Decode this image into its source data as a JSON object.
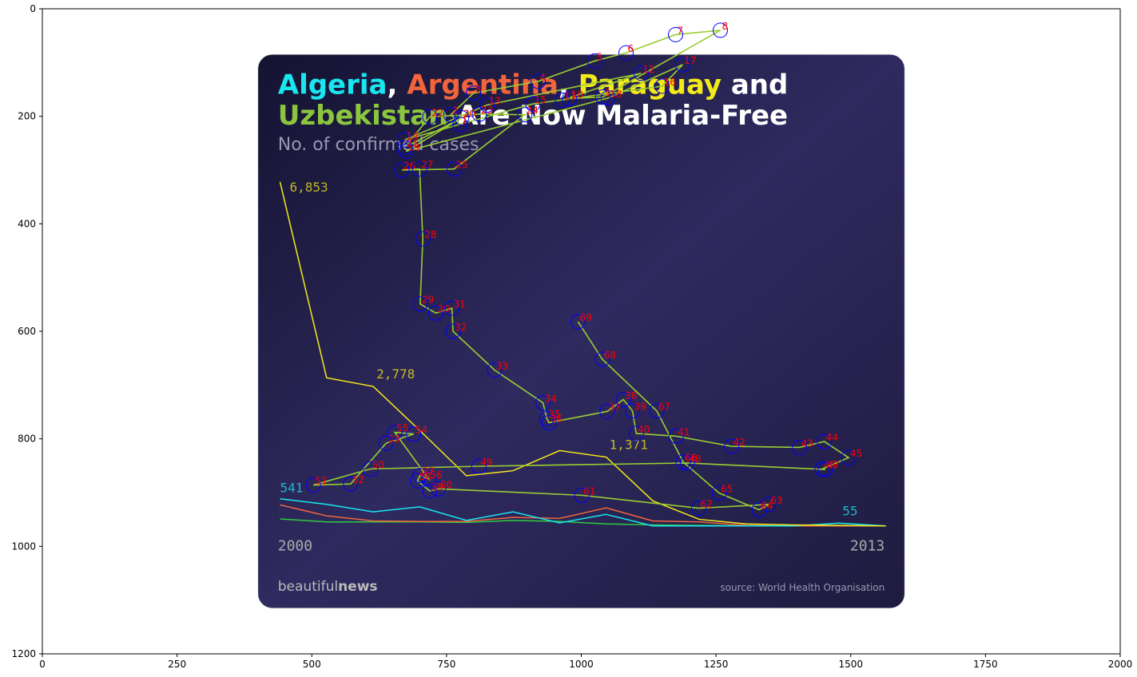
{
  "plot": {
    "x_ticks": [
      "0",
      "250",
      "500",
      "750",
      "1000",
      "1250",
      "1500",
      "1750",
      "2000"
    ],
    "y_ticks": [
      "0",
      "200",
      "400",
      "600",
      "800",
      "1000",
      "1200"
    ],
    "xlim": [
      0,
      2000
    ],
    "ylim": [
      1200,
      0
    ],
    "colors": {
      "polyline": "#9acd32",
      "marker": "#0000ff",
      "index_label": "#ff0000"
    }
  },
  "infographic": {
    "title_words": [
      {
        "text": "Algeria",
        "color": "#19e6ef"
      },
      {
        "text": ", ",
        "color": "#ffffff"
      },
      {
        "text": "Argentina",
        "color": "#f2643b"
      },
      {
        "text": ", ",
        "color": "#ffffff"
      },
      {
        "text": "Paraguay",
        "color": "#f3ea1a"
      },
      {
        "text": " and",
        "color": "#ffffff"
      }
    ],
    "title_line2_words": [
      {
        "text": "Uzbekistan",
        "color": "#8cc63e"
      },
      {
        "text": " Are Now Malaria-Free",
        "color": "#ffffff"
      }
    ],
    "subtitle": "No. of confirmed cases",
    "year_start": "2000",
    "year_end": "2013",
    "brand_light": "beautiful",
    "brand_bold": "news",
    "source": "source: World Health Organisation",
    "colors": {
      "bg_top": "#141331",
      "bg_mid": "#2f2a5f",
      "bg_bottom": "#1e1b3f"
    }
  },
  "chart_data": [
    {
      "type": "line",
      "title": "Algeria, Argentina, Paraguay and Uzbekistan Are Now Malaria-Free",
      "subtitle": "No. of confirmed cases",
      "x": [
        2000,
        2001,
        2002,
        2003,
        2004,
        2005,
        2006,
        2007,
        2008,
        2009,
        2010,
        2011,
        2012,
        2013
      ],
      "xlim": [
        2000,
        2013
      ],
      "series": [
        {
          "name": "Uzbekistan",
          "color": "#f3ea1a",
          "values": [
            6853,
            2950,
            2778,
            1900,
            1000,
            1100,
            1500,
            1371,
            500,
            130,
            40,
            20,
            10,
            0
          ],
          "labels": [
            {
              "text": "6,853",
              "index": 0
            },
            {
              "text": "2,778",
              "index": 2
            },
            {
              "text": "1,371",
              "index": 7
            }
          ]
        },
        {
          "name": "Paraguay",
          "color": "#19e6ef",
          "values": [
            541,
            430,
            280,
            380,
            110,
            280,
            60,
            230,
            0,
            0,
            0,
            0,
            55,
            0
          ],
          "labels": [
            {
              "text": "541",
              "index": 0
            },
            {
              "text": "55",
              "index": 12
            }
          ]
        },
        {
          "name": "Argentina",
          "color": "#f2643b",
          "values": [
            420,
            200,
            100,
            90,
            90,
            170,
            150,
            360,
            100,
            80,
            10,
            0,
            0,
            0
          ]
        },
        {
          "name": "Algeria",
          "color": "#2ecc40",
          "values": [
            140,
            80,
            80,
            80,
            70,
            110,
            90,
            40,
            20,
            10,
            0,
            0,
            0,
            0
          ]
        }
      ]
    },
    {
      "type": "scatter",
      "xlim": [
        0,
        2000
      ],
      "ylim": [
        1200,
        0
      ],
      "points": [
        {
          "label": "1",
          "x": 775,
          "y": 215
        },
        {
          "label": "2",
          "x": 758,
          "y": 197
        },
        {
          "label": "3",
          "x": 800,
          "y": 157
        },
        {
          "label": "4",
          "x": 920,
          "y": 135
        },
        {
          "label": "5",
          "x": 1025,
          "y": 97
        },
        {
          "label": "6",
          "x": 1083,
          "y": 82
        },
        {
          "label": "7",
          "x": 1175,
          "y": 48
        },
        {
          "label": "8",
          "x": 1258,
          "y": 40
        },
        {
          "label": "9",
          "x": 1040,
          "y": 164
        },
        {
          "label": "10",
          "x": 978,
          "y": 167
        },
        {
          "label": "11",
          "x": 965,
          "y": 170
        },
        {
          "label": "12",
          "x": 1111,
          "y": 120
        },
        {
          "label": "13",
          "x": 825,
          "y": 179
        },
        {
          "label": "14",
          "x": 672,
          "y": 244
        },
        {
          "label": "15",
          "x": 910,
          "y": 177
        },
        {
          "label": "16",
          "x": 1150,
          "y": 144
        },
        {
          "label": "17",
          "x": 1188,
          "y": 104
        },
        {
          "label": "18",
          "x": 1050,
          "y": 166
        },
        {
          "label": "19",
          "x": 675,
          "y": 265
        },
        {
          "label": "20",
          "x": 778,
          "y": 203
        },
        {
          "label": "21",
          "x": 672,
          "y": 258
        },
        {
          "label": "22",
          "x": 719,
          "y": 201
        },
        {
          "label": "23",
          "x": 811,
          "y": 196
        },
        {
          "label": "24",
          "x": 895,
          "y": 197
        },
        {
          "label": "25",
          "x": 764,
          "y": 298
        },
        {
          "label": "26",
          "x": 667,
          "y": 300
        },
        {
          "label": "27",
          "x": 700,
          "y": 298
        },
        {
          "label": "28",
          "x": 706,
          "y": 428
        },
        {
          "label": "29",
          "x": 701,
          "y": 549
        },
        {
          "label": "30",
          "x": 730,
          "y": 566
        },
        {
          "label": "31",
          "x": 760,
          "y": 557
        },
        {
          "label": "32",
          "x": 762,
          "y": 600
        },
        {
          "label": "33",
          "x": 839,
          "y": 672
        },
        {
          "label": "34",
          "x": 929,
          "y": 733
        },
        {
          "label": "35",
          "x": 936,
          "y": 762
        },
        {
          "label": "36",
          "x": 940,
          "y": 770
        },
        {
          "label": "37",
          "x": 1048,
          "y": 749
        },
        {
          "label": "38",
          "x": 1078,
          "y": 727
        },
        {
          "label": "39",
          "x": 1095,
          "y": 748
        },
        {
          "label": "40",
          "x": 1102,
          "y": 790
        },
        {
          "label": "41",
          "x": 1176,
          "y": 795
        },
        {
          "label": "42",
          "x": 1279,
          "y": 814
        },
        {
          "label": "43",
          "x": 1405,
          "y": 816
        },
        {
          "label": "44",
          "x": 1451,
          "y": 805
        },
        {
          "label": "45",
          "x": 1496,
          "y": 835
        },
        {
          "label": "46",
          "x": 1447,
          "y": 856
        },
        {
          "label": "47",
          "x": 1453,
          "y": 857
        },
        {
          "label": "48",
          "x": 1197,
          "y": 845
        },
        {
          "label": "49",
          "x": 810,
          "y": 851
        },
        {
          "label": "50",
          "x": 609,
          "y": 856
        },
        {
          "label": "51",
          "x": 503,
          "y": 886
        },
        {
          "label": "52",
          "x": 572,
          "y": 884
        },
        {
          "label": "53",
          "x": 638,
          "y": 808
        },
        {
          "label": "54",
          "x": 689,
          "y": 791
        },
        {
          "label": "55",
          "x": 654,
          "y": 788
        },
        {
          "label": "56",
          "x": 717,
          "y": 875
        },
        {
          "label": "57",
          "x": 701,
          "y": 868
        },
        {
          "label": "58",
          "x": 696,
          "y": 878
        },
        {
          "label": "59",
          "x": 719,
          "y": 897
        },
        {
          "label": "60",
          "x": 735,
          "y": 893
        },
        {
          "label": "61",
          "x": 1001,
          "y": 905
        },
        {
          "label": "62",
          "x": 1218,
          "y": 929
        },
        {
          "label": "63",
          "x": 1348,
          "y": 922
        },
        {
          "label": "64",
          "x": 1330,
          "y": 932
        },
        {
          "label": "65",
          "x": 1256,
          "y": 901
        },
        {
          "label": "66",
          "x": 1189,
          "y": 843
        },
        {
          "label": "67",
          "x": 1140,
          "y": 748
        },
        {
          "label": "68",
          "x": 1039,
          "y": 652
        },
        {
          "label": "69",
          "x": 994,
          "y": 582
        }
      ]
    }
  ]
}
